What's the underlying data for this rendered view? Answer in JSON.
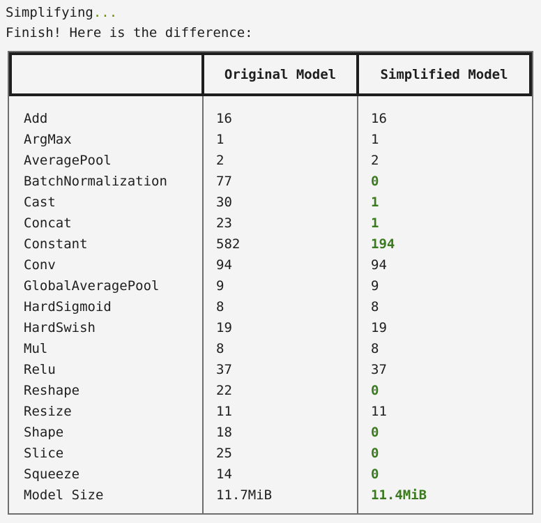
{
  "console": {
    "line1_text": "Simplifying",
    "line1_dots": "...",
    "line2_text": "Finish! Here is the difference:"
  },
  "table": {
    "headers": [
      "",
      "Original Model",
      "Simplified Model"
    ],
    "rows": [
      {
        "name": "Add",
        "original": "16",
        "simplified": "16",
        "changed": false
      },
      {
        "name": "ArgMax",
        "original": "1",
        "simplified": "1",
        "changed": false
      },
      {
        "name": "AveragePool",
        "original": "2",
        "simplified": "2",
        "changed": false
      },
      {
        "name": "BatchNormalization",
        "original": "77",
        "simplified": "0",
        "changed": true
      },
      {
        "name": "Cast",
        "original": "30",
        "simplified": "1",
        "changed": true
      },
      {
        "name": "Concat",
        "original": "23",
        "simplified": "1",
        "changed": true
      },
      {
        "name": "Constant",
        "original": "582",
        "simplified": "194",
        "changed": true
      },
      {
        "name": "Conv",
        "original": "94",
        "simplified": "94",
        "changed": false
      },
      {
        "name": "GlobalAveragePool",
        "original": "9",
        "simplified": "9",
        "changed": false
      },
      {
        "name": "HardSigmoid",
        "original": "8",
        "simplified": "8",
        "changed": false
      },
      {
        "name": "HardSwish",
        "original": "19",
        "simplified": "19",
        "changed": false
      },
      {
        "name": "Mul",
        "original": "8",
        "simplified": "8",
        "changed": false
      },
      {
        "name": "Relu",
        "original": "37",
        "simplified": "37",
        "changed": false
      },
      {
        "name": "Reshape",
        "original": "22",
        "simplified": "0",
        "changed": true
      },
      {
        "name": "Resize",
        "original": "11",
        "simplified": "11",
        "changed": false
      },
      {
        "name": "Shape",
        "original": "18",
        "simplified": "0",
        "changed": true
      },
      {
        "name": "Slice",
        "original": "25",
        "simplified": "0",
        "changed": true
      },
      {
        "name": "Squeeze",
        "original": "14",
        "simplified": "0",
        "changed": true
      },
      {
        "name": "Model Size",
        "original": "11.7MiB",
        "simplified": "11.4MiB",
        "changed": true
      }
    ]
  },
  "colors": {
    "changed_value": "#3c7a1f",
    "dots": "#6a8c13"
  }
}
